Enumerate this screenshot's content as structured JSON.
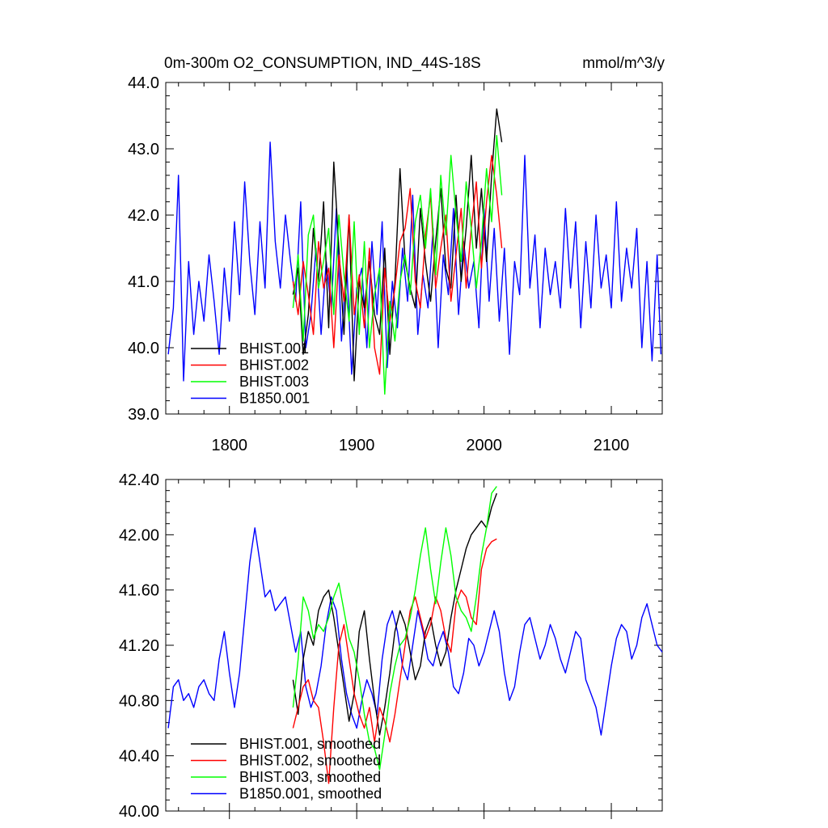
{
  "chart_data": [
    {
      "type": "line",
      "title": "0m-300m O2_CONSUMPTION, IND_44S-18S",
      "units": "mmol/m^3/y",
      "xlim": [
        1750,
        2140
      ],
      "ylim": [
        39.0,
        44.0
      ],
      "x_ticks": [
        "1800",
        "1900",
        "2000",
        "2100"
      ],
      "y_ticks": [
        "39.0",
        "40.0",
        "41.0",
        "42.0",
        "43.0",
        "44.0"
      ],
      "legend_position": "bottom-left",
      "series": [
        {
          "name": "BHIST.001",
          "color": "#000000",
          "x": [
            1850,
            1854,
            1858,
            1862,
            1866,
            1870,
            1874,
            1878,
            1882,
            1886,
            1890,
            1894,
            1898,
            1902,
            1906,
            1910,
            1914,
            1918,
            1922,
            1926,
            1930,
            1934,
            1938,
            1942,
            1946,
            1950,
            1954,
            1958,
            1962,
            1966,
            1970,
            1974,
            1978,
            1982,
            1986,
            1990,
            1994,
            1998,
            2002,
            2006,
            2010,
            2014
          ],
          "y": [
            40.8,
            41.2,
            39.9,
            40.5,
            41.8,
            41.0,
            42.2,
            40.3,
            42.8,
            41.5,
            40.2,
            42.0,
            39.5,
            41.0,
            40.6,
            41.3,
            40.5,
            40.2,
            41.5,
            39.9,
            41.0,
            42.7,
            41.3,
            40.9,
            40.6,
            42.1,
            41.3,
            40.7,
            41.6,
            42.4,
            41.2,
            40.9,
            42.3,
            41.0,
            41.8,
            42.9,
            41.5,
            42.4,
            41.3,
            42.6,
            43.6,
            43.1
          ]
        },
        {
          "name": "BHIST.002",
          "color": "#ff0000",
          "x": [
            1850,
            1854,
            1858,
            1862,
            1866,
            1870,
            1874,
            1878,
            1882,
            1886,
            1890,
            1894,
            1898,
            1902,
            1906,
            1910,
            1914,
            1918,
            1922,
            1926,
            1930,
            1934,
            1938,
            1942,
            1946,
            1950,
            1954,
            1958,
            1962,
            1966,
            1970,
            1974,
            1978,
            1982,
            1986,
            1990,
            1994,
            1998,
            2002,
            2006,
            2010,
            2014
          ],
          "y": [
            41.0,
            40.5,
            41.3,
            40.8,
            40.2,
            41.6,
            40.9,
            41.2,
            40.0,
            41.4,
            40.7,
            42.0,
            40.5,
            41.1,
            40.3,
            41.5,
            40.0,
            39.6,
            41.2,
            40.4,
            40.9,
            41.6,
            41.8,
            42.4,
            41.0,
            40.6,
            41.7,
            42.3,
            40.9,
            41.5,
            42.0,
            40.7,
            41.4,
            42.1,
            40.9,
            41.8,
            42.5,
            41.2,
            42.2,
            42.9,
            42.3,
            41.5
          ]
        },
        {
          "name": "BHIST.003",
          "color": "#00ff00",
          "x": [
            1850,
            1854,
            1858,
            1862,
            1866,
            1870,
            1874,
            1878,
            1882,
            1886,
            1890,
            1894,
            1898,
            1902,
            1906,
            1910,
            1914,
            1918,
            1922,
            1926,
            1930,
            1934,
            1938,
            1942,
            1946,
            1950,
            1954,
            1958,
            1962,
            1966,
            1970,
            1974,
            1978,
            1982,
            1986,
            1990,
            1994,
            1998,
            2002,
            2006,
            2010,
            2014
          ],
          "y": [
            40.6,
            41.4,
            40.1,
            41.7,
            42.0,
            40.9,
            41.3,
            41.8,
            40.5,
            42.0,
            41.1,
            40.4,
            41.9,
            40.2,
            41.6,
            40.0,
            40.8,
            41.2,
            39.3,
            40.7,
            40.1,
            41.0,
            41.4,
            40.8,
            41.9,
            42.3,
            41.5,
            42.4,
            41.1,
            42.6,
            41.7,
            42.9,
            42.0,
            41.3,
            42.5,
            41.8,
            40.9,
            41.6,
            42.7,
            41.9,
            43.2,
            42.3
          ]
        },
        {
          "name": "B1850.001",
          "color": "#0000ff",
          "x": [
            1752,
            1756,
            1760,
            1764,
            1768,
            1772,
            1776,
            1780,
            1784,
            1788,
            1792,
            1796,
            1800,
            1804,
            1808,
            1812,
            1816,
            1820,
            1824,
            1828,
            1832,
            1836,
            1840,
            1844,
            1848,
            1852,
            1856,
            1860,
            1864,
            1868,
            1872,
            1876,
            1880,
            1884,
            1888,
            1892,
            1896,
            1900,
            1904,
            1908,
            1912,
            1916,
            1920,
            1924,
            1928,
            1932,
            1936,
            1940,
            1944,
            1948,
            1952,
            1956,
            1960,
            1964,
            1968,
            1972,
            1976,
            1980,
            1984,
            1988,
            1992,
            1996,
            2000,
            2004,
            2008,
            2012,
            2016,
            2020,
            2024,
            2028,
            2032,
            2036,
            2040,
            2044,
            2048,
            2052,
            2056,
            2060,
            2064,
            2068,
            2072,
            2076,
            2080,
            2084,
            2088,
            2092,
            2096,
            2100,
            2104,
            2108,
            2112,
            2116,
            2120,
            2124,
            2128,
            2132,
            2136,
            2139
          ],
          "y": [
            39.9,
            40.6,
            42.6,
            39.5,
            41.3,
            40.2,
            41.0,
            40.4,
            41.4,
            40.7,
            39.9,
            41.2,
            40.4,
            41.9,
            40.8,
            42.5,
            41.3,
            40.5,
            41.9,
            40.9,
            43.1,
            41.6,
            40.9,
            42.0,
            41.3,
            40.7,
            42.2,
            40.0,
            40.5,
            41.5,
            40.2,
            41.3,
            40.6,
            42.1,
            40.1,
            41.3,
            39.6,
            40.9,
            41.2,
            40.0,
            41.6,
            40.5,
            41.9,
            39.7,
            41.0,
            40.3,
            41.5,
            40.7,
            42.3,
            40.2,
            41.1,
            40.6,
            41.8,
            40.0,
            41.4,
            40.8,
            42.1,
            40.5,
            41.6,
            40.9,
            41.3,
            40.3,
            42.1,
            40.7,
            41.8,
            40.4,
            41.5,
            39.9,
            41.3,
            40.8,
            42.9,
            40.9,
            41.7,
            40.3,
            41.5,
            40.8,
            41.3,
            40.6,
            42.1,
            40.9,
            41.9,
            40.3,
            41.6,
            40.6,
            42.0,
            40.9,
            41.4,
            40.6,
            42.2,
            40.7,
            41.5,
            40.9,
            41.8,
            40.0,
            41.3,
            39.8,
            41.4,
            39.9
          ]
        }
      ]
    },
    {
      "type": "line",
      "xlim": [
        1750,
        2140
      ],
      "ylim": [
        40.0,
        42.4
      ],
      "y_ticks": [
        "40.00",
        "40.40",
        "40.80",
        "41.20",
        "41.60",
        "42.00",
        "42.40"
      ],
      "legend_position": "bottom-left",
      "series": [
        {
          "name": "BHIST.001, smoothed",
          "color": "#000000",
          "x": [
            1850,
            1854,
            1858,
            1862,
            1866,
            1870,
            1874,
            1878,
            1882,
            1886,
            1890,
            1894,
            1898,
            1902,
            1906,
            1910,
            1914,
            1918,
            1922,
            1926,
            1930,
            1934,
            1938,
            1942,
            1946,
            1950,
            1954,
            1958,
            1962,
            1966,
            1970,
            1974,
            1978,
            1982,
            1986,
            1990,
            1994,
            1998,
            2002,
            2006,
            2010
          ],
          "y": [
            40.95,
            40.7,
            41.1,
            41.3,
            41.2,
            41.45,
            41.55,
            41.6,
            41.4,
            41.15,
            40.9,
            40.65,
            40.85,
            41.3,
            41.45,
            41.1,
            40.8,
            40.55,
            40.75,
            41.0,
            41.3,
            41.45,
            41.35,
            41.15,
            40.95,
            41.05,
            41.3,
            41.4,
            41.2,
            41.05,
            41.15,
            41.4,
            41.6,
            41.75,
            41.9,
            42.0,
            42.05,
            42.1,
            42.05,
            42.2,
            42.3
          ]
        },
        {
          "name": "BHIST.002, smoothed",
          "color": "#ff0000",
          "x": [
            1850,
            1854,
            1858,
            1862,
            1866,
            1870,
            1874,
            1878,
            1882,
            1886,
            1890,
            1894,
            1898,
            1902,
            1906,
            1910,
            1914,
            1918,
            1922,
            1926,
            1930,
            1934,
            1938,
            1942,
            1946,
            1950,
            1954,
            1958,
            1962,
            1966,
            1970,
            1974,
            1978,
            1982,
            1986,
            1990,
            1994,
            1998,
            2002,
            2006,
            2010
          ],
          "y": [
            40.6,
            40.75,
            40.9,
            40.95,
            40.8,
            40.75,
            40.5,
            40.2,
            40.75,
            41.2,
            41.35,
            41.1,
            40.85,
            40.7,
            40.6,
            40.75,
            40.5,
            40.75,
            40.65,
            40.5,
            40.7,
            40.95,
            41.2,
            41.45,
            41.55,
            41.4,
            41.25,
            41.35,
            41.55,
            41.45,
            41.25,
            41.15,
            41.5,
            41.6,
            41.55,
            41.4,
            41.35,
            41.75,
            41.9,
            41.95,
            41.97
          ]
        },
        {
          "name": "BHIST.003, smoothed",
          "color": "#00ff00",
          "x": [
            1850,
            1854,
            1858,
            1862,
            1866,
            1870,
            1874,
            1878,
            1882,
            1886,
            1890,
            1894,
            1898,
            1902,
            1906,
            1910,
            1914,
            1918,
            1922,
            1926,
            1930,
            1934,
            1938,
            1942,
            1946,
            1950,
            1954,
            1958,
            1962,
            1966,
            1970,
            1974,
            1978,
            1982,
            1986,
            1990,
            1994,
            1998,
            2002,
            2006,
            2010
          ],
          "y": [
            40.75,
            41.1,
            41.55,
            41.45,
            41.25,
            41.35,
            41.3,
            41.4,
            41.55,
            41.65,
            41.45,
            41.25,
            41.15,
            40.95,
            40.7,
            40.5,
            40.45,
            40.3,
            40.55,
            40.85,
            41.05,
            41.2,
            41.25,
            41.4,
            41.6,
            41.85,
            42.05,
            41.75,
            41.5,
            41.8,
            42.05,
            41.85,
            41.55,
            41.45,
            41.4,
            41.3,
            41.55,
            41.85,
            42.05,
            42.3,
            42.35
          ]
        },
        {
          "name": "B1850.001, smoothed",
          "color": "#0000ff",
          "x": [
            1752,
            1756,
            1760,
            1764,
            1768,
            1772,
            1776,
            1780,
            1784,
            1788,
            1792,
            1796,
            1800,
            1804,
            1808,
            1812,
            1816,
            1820,
            1824,
            1828,
            1832,
            1836,
            1840,
            1844,
            1848,
            1852,
            1856,
            1860,
            1864,
            1868,
            1872,
            1876,
            1880,
            1884,
            1888,
            1892,
            1896,
            1900,
            1904,
            1908,
            1912,
            1916,
            1920,
            1924,
            1928,
            1932,
            1936,
            1940,
            1944,
            1948,
            1952,
            1956,
            1960,
            1964,
            1968,
            1972,
            1976,
            1980,
            1984,
            1988,
            1992,
            1996,
            2000,
            2004,
            2008,
            2012,
            2016,
            2020,
            2024,
            2028,
            2032,
            2036,
            2040,
            2044,
            2048,
            2052,
            2056,
            2060,
            2064,
            2068,
            2072,
            2076,
            2080,
            2084,
            2088,
            2092,
            2096,
            2100,
            2104,
            2108,
            2112,
            2116,
            2120,
            2124,
            2128,
            2132,
            2136,
            2140
          ],
          "y": [
            40.6,
            40.9,
            40.95,
            40.8,
            40.85,
            40.75,
            40.9,
            40.95,
            40.85,
            40.8,
            41.1,
            41.3,
            41.0,
            40.75,
            41.0,
            41.4,
            41.8,
            42.05,
            41.8,
            41.55,
            41.6,
            41.45,
            41.5,
            41.55,
            41.35,
            41.15,
            41.3,
            40.9,
            40.75,
            40.85,
            41.05,
            41.35,
            41.55,
            41.45,
            41.1,
            40.85,
            40.7,
            40.6,
            40.8,
            40.95,
            40.85,
            40.7,
            41.1,
            41.35,
            41.45,
            41.3,
            41.05,
            40.95,
            41.2,
            41.45,
            41.3,
            41.1,
            41.05,
            41.2,
            41.3,
            41.15,
            40.9,
            40.85,
            41.0,
            41.25,
            41.2,
            41.05,
            41.15,
            41.3,
            41.45,
            41.3,
            41.0,
            40.8,
            40.9,
            41.15,
            41.35,
            41.4,
            41.25,
            41.1,
            41.2,
            41.35,
            41.25,
            41.1,
            41.0,
            41.15,
            41.3,
            41.25,
            40.95,
            40.85,
            40.75,
            40.55,
            40.8,
            41.05,
            41.25,
            41.35,
            41.3,
            41.1,
            41.2,
            41.4,
            41.5,
            41.35,
            41.2,
            41.15
          ]
        }
      ]
    }
  ]
}
